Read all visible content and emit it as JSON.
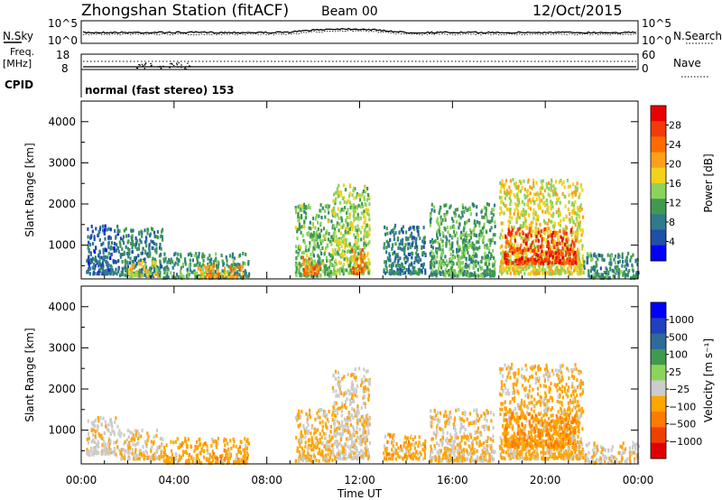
{
  "header": {
    "station": "Zhongshan Station (fitACF)",
    "beam": "Beam 00",
    "date": "12/Oct/2015"
  },
  "strips": {
    "nsky": "N.Sky",
    "nsearch": "N.Search",
    "freq_line1": "Freq.",
    "freq_line2": "[MHz]",
    "nave": "Nave",
    "cpid": "CPID",
    "cpid_value": "normal (fast stereo) 153",
    "noise_ticks_left": [
      "10^5",
      "10^0"
    ],
    "noise_ticks_right": [
      "10^5",
      "10^0"
    ],
    "freq_ticks": [
      "18",
      "8"
    ],
    "nave_ticks": [
      "60",
      "0"
    ]
  },
  "colors": {
    "power": [
      "#0000ff",
      "#1f4fa8",
      "#2f7a8c",
      "#3f9a50",
      "#8bd35a",
      "#f2d21a",
      "#ff9f1a",
      "#ff6a00",
      "#f23a0c",
      "#e80000"
    ],
    "velocity": [
      "#0000ff",
      "#2040c0",
      "#2f6a99",
      "#3f9a50",
      "#8bd35a",
      "#cccccc",
      "#ffa500",
      "#ff7a00",
      "#f04000",
      "#e00000"
    ]
  },
  "chart_data": [
    {
      "type": "heatmap",
      "name": "power-panel",
      "ylabel": "Slant Range [km]",
      "xlabel": "",
      "xlim": [
        "00:00",
        "00:00"
      ],
      "ylim": [
        180,
        4500
      ],
      "x_tick_labels": [
        "00:00",
        "04:00",
        "08:00",
        "12:00",
        "16:00",
        "20:00",
        "00:00"
      ],
      "y_ticks": [
        1000,
        2000,
        3000,
        4000
      ],
      "colorbar": {
        "label": "Power [dB]",
        "ticks": [
          "4",
          "8",
          "12",
          "16",
          "20",
          "24",
          "28"
        ],
        "range": [
          0,
          30
        ]
      },
      "regions": [
        {
          "t": [
            0.2,
            1.6
          ],
          "r": [
            300,
            1500
          ],
          "level": 6
        },
        {
          "t": [
            1.6,
            3.5
          ],
          "r": [
            250,
            1400
          ],
          "level": 8
        },
        {
          "t": [
            2.0,
            3.3
          ],
          "r": [
            250,
            600
          ],
          "level": 16
        },
        {
          "t": [
            3.5,
            7.2
          ],
          "r": [
            200,
            800
          ],
          "level": 10
        },
        {
          "t": [
            5.0,
            7.0
          ],
          "r": [
            200,
            500
          ],
          "level": 20
        },
        {
          "t": [
            9.2,
            10.8
          ],
          "r": [
            250,
            2000
          ],
          "level": 12
        },
        {
          "t": [
            9.5,
            10.3
          ],
          "r": [
            300,
            700
          ],
          "level": 22
        },
        {
          "t": [
            10.8,
            12.4
          ],
          "r": [
            300,
            2500
          ],
          "level": 14
        },
        {
          "t": [
            11.6,
            12.2
          ],
          "r": [
            300,
            900
          ],
          "level": 22
        },
        {
          "t": [
            13.0,
            14.8
          ],
          "r": [
            300,
            1500
          ],
          "level": 8
        },
        {
          "t": [
            15.0,
            17.8
          ],
          "r": [
            250,
            2000
          ],
          "level": 11
        },
        {
          "t": [
            18.0,
            21.6
          ],
          "r": [
            300,
            2600
          ],
          "level": 16
        },
        {
          "t": [
            18.2,
            21.3
          ],
          "r": [
            550,
            1400
          ],
          "level": 26
        },
        {
          "t": [
            21.6,
            24.0
          ],
          "r": [
            200,
            800
          ],
          "level": 9
        }
      ]
    },
    {
      "type": "heatmap",
      "name": "velocity-panel",
      "ylabel": "Slant Range [km]",
      "xlabel": "Time UT",
      "xlim": [
        "00:00",
        "00:00"
      ],
      "ylim": [
        180,
        4500
      ],
      "x_tick_labels": [
        "00:00",
        "04:00",
        "08:00",
        "12:00",
        "16:00",
        "20:00",
        "00:00"
      ],
      "y_ticks": [
        1000,
        2000,
        3000,
        4000
      ],
      "colorbar": {
        "label": "Velocity [m s⁻¹]",
        "ticks": [
          "1000",
          "500",
          "100",
          "25",
          "−25",
          "−100",
          "−500",
          "−1000"
        ],
        "range": [
          -1000,
          1000
        ]
      },
      "regions": [
        {
          "t": [
            0.2,
            1.6
          ],
          "r": [
            400,
            1300
          ],
          "level": -150
        },
        {
          "t": [
            1.6,
            3.5
          ],
          "r": [
            300,
            1000
          ],
          "level": -200
        },
        {
          "t": [
            3.5,
            7.2
          ],
          "r": [
            200,
            800
          ],
          "level": -300
        },
        {
          "t": [
            9.2,
            10.8
          ],
          "r": [
            250,
            1500
          ],
          "level": -250
        },
        {
          "t": [
            10.8,
            12.4
          ],
          "r": [
            300,
            2500
          ],
          "level": -150
        },
        {
          "t": [
            13.0,
            14.8
          ],
          "r": [
            300,
            900
          ],
          "level": -300
        },
        {
          "t": [
            15.0,
            17.8
          ],
          "r": [
            250,
            1500
          ],
          "level": -200
        },
        {
          "t": [
            18.0,
            21.6
          ],
          "r": [
            300,
            2600
          ],
          "level": -250
        },
        {
          "t": [
            18.2,
            21.3
          ],
          "r": [
            600,
            1400
          ],
          "level": -400
        },
        {
          "t": [
            21.6,
            24.0
          ],
          "r": [
            200,
            700
          ],
          "level": -150
        }
      ]
    }
  ]
}
